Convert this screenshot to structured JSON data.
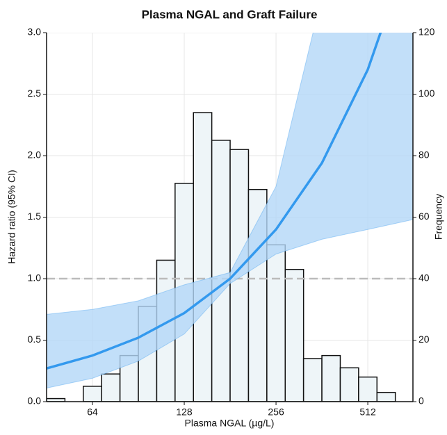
{
  "chart_data": {
    "type": "line",
    "title": "Plasma NGAL and Graft Failure",
    "xlabel": "Plasma NGAL (µg/L)",
    "ylabel": "Hazard ratio (95% CI)",
    "y2label": "Frequency",
    "xscale": "log2",
    "xlim": [
      45.25,
      720
    ],
    "ylim": [
      0,
      3
    ],
    "y2lim": [
      0,
      120
    ],
    "xticks": [
      64,
      128,
      256,
      512
    ],
    "yticks": [
      {
        "value": 0,
        "label": "0.0"
      },
      0.5,
      {
        "value": 1,
        "label": "1.0"
      },
      1.5,
      {
        "value": 2,
        "label": "2.0"
      },
      2.5,
      {
        "value": 3,
        "label": "3.0"
      }
    ],
    "y2ticks": [
      0,
      20,
      40,
      60,
      80,
      100,
      120
    ],
    "grid": true,
    "reference_line": 1,
    "histogram": {
      "axis": "y2",
      "color": "#eef5f8",
      "bins": [
        45.25,
        51.98,
        59.71,
        68.59,
        78.79,
        90.51,
        103.97,
        119.43,
        137.19,
        157.59,
        181.02,
        207.94,
        238.86,
        274.37,
        315.17,
        362.04,
        415.87,
        477.71,
        548.75,
        630.35
      ],
      "counts": [
        1,
        0,
        5,
        9,
        15,
        31,
        46,
        71,
        94,
        85,
        82,
        69,
        51,
        43,
        14,
        15,
        11,
        8,
        3
      ]
    },
    "series": [
      {
        "color": "#3399ee",
        "band_color": "#b3d7f7",
        "x": [
          45.25,
          64,
          90.5,
          128,
          181,
          256,
          362,
          512,
          720
        ],
        "values": [
          0.27,
          0.375,
          0.52,
          0.72,
          1.0,
          1.4,
          1.94,
          2.7,
          3.76
        ],
        "lower": [
          0.11,
          0.19,
          0.33,
          0.55,
          0.96,
          1.2,
          1.32,
          1.4,
          1.48
        ],
        "upper": [
          0.71,
          0.75,
          0.82,
          0.95,
          1.05,
          1.75,
          3.3,
          5.0,
          7.0
        ]
      }
    ]
  }
}
